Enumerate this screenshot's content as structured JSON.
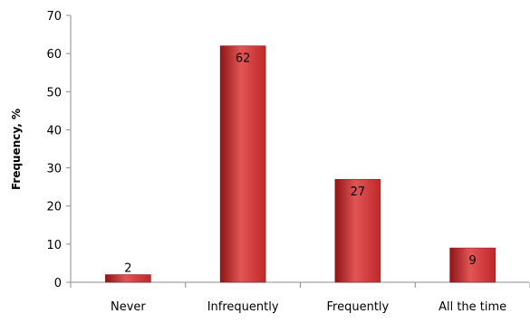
{
  "chart_data": {
    "type": "bar",
    "categories": [
      "Never",
      "Infrequently",
      "Frequently",
      "All the time"
    ],
    "values": [
      2,
      62,
      27,
      9
    ],
    "data_labels": [
      "2",
      "62",
      "27",
      "9"
    ],
    "title": "",
    "xlabel": "",
    "ylabel": "Frequency, %",
    "ylim": [
      0,
      70
    ],
    "yticks": [
      0,
      10,
      20,
      30,
      40,
      50,
      60,
      70
    ],
    "grid": false,
    "legend": "none",
    "bar_color": "#c0282a",
    "bar_highlight": "#e25555",
    "bar_shadow": "#8e1517"
  }
}
